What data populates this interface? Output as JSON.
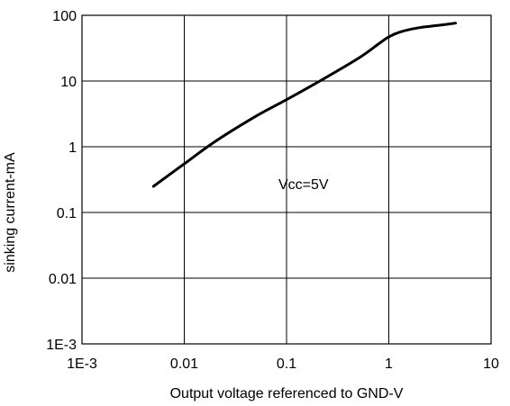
{
  "chart_data": {
    "type": "line",
    "x_scale": "log",
    "y_scale": "log",
    "xlim": [
      0.001,
      10
    ],
    "ylim": [
      0.001,
      100
    ],
    "x_ticks": [
      0.001,
      0.01,
      0.1,
      1,
      10
    ],
    "y_ticks": [
      0.001,
      0.01,
      0.1,
      1,
      10,
      100
    ],
    "x_tick_labels": [
      "1E-3",
      "0.01",
      "0.1",
      "1",
      "10"
    ],
    "y_tick_labels": [
      "1E-3",
      "0.01",
      "0.1",
      "1",
      "10",
      "100"
    ],
    "xlabel": "Output voltage referenced to GND-V",
    "ylabel": "sinking current-mA",
    "grid": true,
    "annotation": "Vcc=5V",
    "series": [
      {
        "x": [
          0.005,
          0.01,
          0.02,
          0.05,
          0.1,
          0.2,
          0.5,
          0.8,
          1.0,
          1.3,
          2.0,
          3.0,
          4.5
        ],
        "y": [
          0.25,
          0.55,
          1.2,
          2.9,
          5.2,
          9.5,
          22,
          37,
          47,
          56,
          65,
          70,
          76
        ]
      }
    ]
  }
}
